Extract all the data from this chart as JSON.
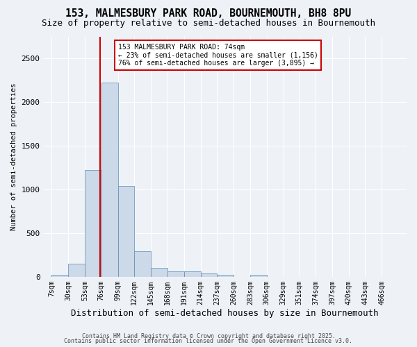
{
  "title1": "153, MALMESBURY PARK ROAD, BOURNEMOUTH, BH8 8PU",
  "title2": "Size of property relative to semi-detached houses in Bournemouth",
  "xlabel": "Distribution of semi-detached houses by size in Bournemouth",
  "ylabel": "Number of semi-detached properties",
  "bin_labels": [
    "7sqm",
    "30sqm",
    "53sqm",
    "76sqm",
    "99sqm",
    "122sqm",
    "145sqm",
    "168sqm",
    "191sqm",
    "214sqm",
    "237sqm",
    "260sqm",
    "283sqm",
    "306sqm",
    "329sqm",
    "351sqm",
    "374sqm",
    "397sqm",
    "420sqm",
    "443sqm",
    "466sqm"
  ],
  "bin_edges": [
    7,
    30,
    53,
    76,
    99,
    122,
    145,
    168,
    191,
    214,
    237,
    260,
    283,
    306,
    329,
    351,
    374,
    397,
    420,
    443,
    466
  ],
  "bar_heights": [
    25,
    150,
    1220,
    2220,
    1040,
    290,
    105,
    60,
    60,
    35,
    25,
    0,
    25,
    0,
    0,
    0,
    0,
    0,
    0,
    0
  ],
  "bar_color": "#ccd9e8",
  "bar_edge_color": "#5a8db5",
  "property_size": 74,
  "red_line_color": "#cc0000",
  "annotation_line1": "153 MALMESBURY PARK ROAD: 74sqm",
  "annotation_line2": "← 23% of semi-detached houses are smaller (1,156)",
  "annotation_line3": "76% of semi-detached houses are larger (3,895) →",
  "annotation_box_color": "#ffffff",
  "annotation_border_color": "#cc0000",
  "ylim": [
    0,
    2750
  ],
  "background_color": "#eef2f7",
  "grid_color": "#ffffff",
  "footer1": "Contains HM Land Registry data © Crown copyright and database right 2025.",
  "footer2": "Contains public sector information licensed under the Open Government Licence v3.0.",
  "title1_fontsize": 10.5,
  "title2_fontsize": 9,
  "xlabel_fontsize": 9,
  "ylabel_fontsize": 7.5,
  "tick_fontsize": 7,
  "footer_fontsize": 6
}
